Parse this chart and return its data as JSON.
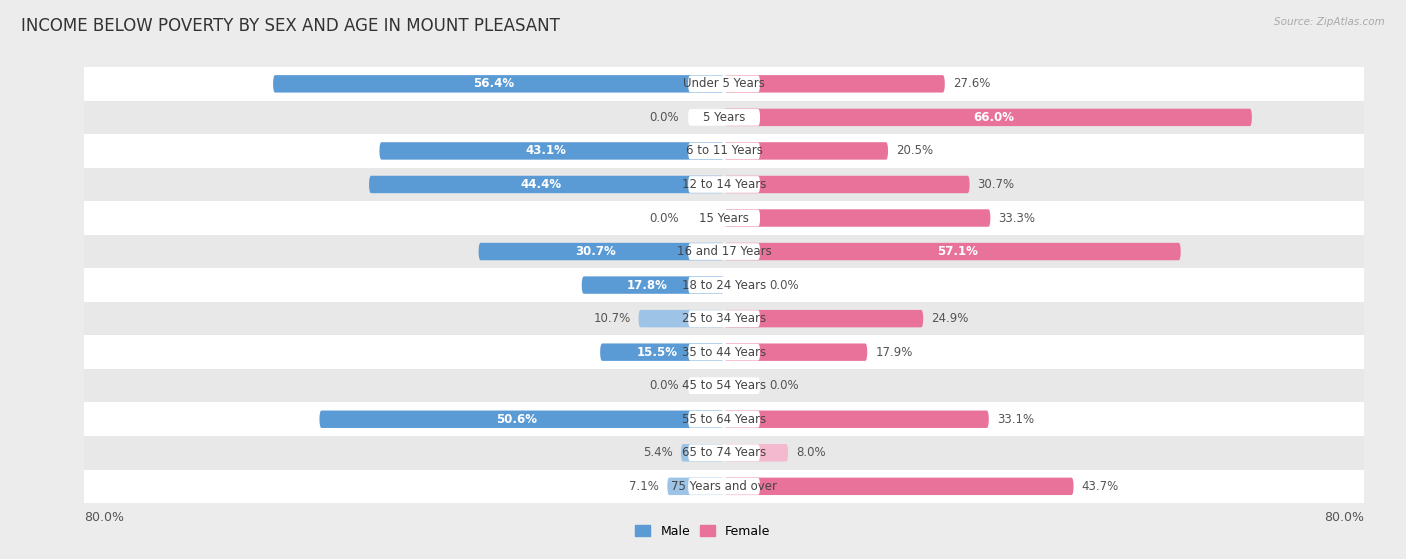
{
  "title": "INCOME BELOW POVERTY BY SEX AND AGE IN MOUNT PLEASANT",
  "source": "Source: ZipAtlas.com",
  "categories": [
    "Under 5 Years",
    "5 Years",
    "6 to 11 Years",
    "12 to 14 Years",
    "15 Years",
    "16 and 17 Years",
    "18 to 24 Years",
    "25 to 34 Years",
    "35 to 44 Years",
    "45 to 54 Years",
    "55 to 64 Years",
    "65 to 74 Years",
    "75 Years and over"
  ],
  "male": [
    56.4,
    0.0,
    43.1,
    44.4,
    0.0,
    30.7,
    17.8,
    10.7,
    15.5,
    0.0,
    50.6,
    5.4,
    7.1
  ],
  "female": [
    27.6,
    66.0,
    20.5,
    30.7,
    33.3,
    57.1,
    0.0,
    24.9,
    17.9,
    0.0,
    33.1,
    8.0,
    43.7
  ],
  "male_color_strong": "#5b9bd5",
  "male_color_light": "#9dc3e6",
  "female_color_strong": "#e8729a",
  "female_color_light": "#f4b8cf",
  "xlim": 80.0,
  "background_color": "#ececec",
  "row_white": "#ffffff",
  "row_gray": "#e8e8e8",
  "title_fontsize": 12,
  "label_fontsize": 8.5,
  "axis_fontsize": 9,
  "legend_fontsize": 9,
  "value_fontsize": 8.5
}
